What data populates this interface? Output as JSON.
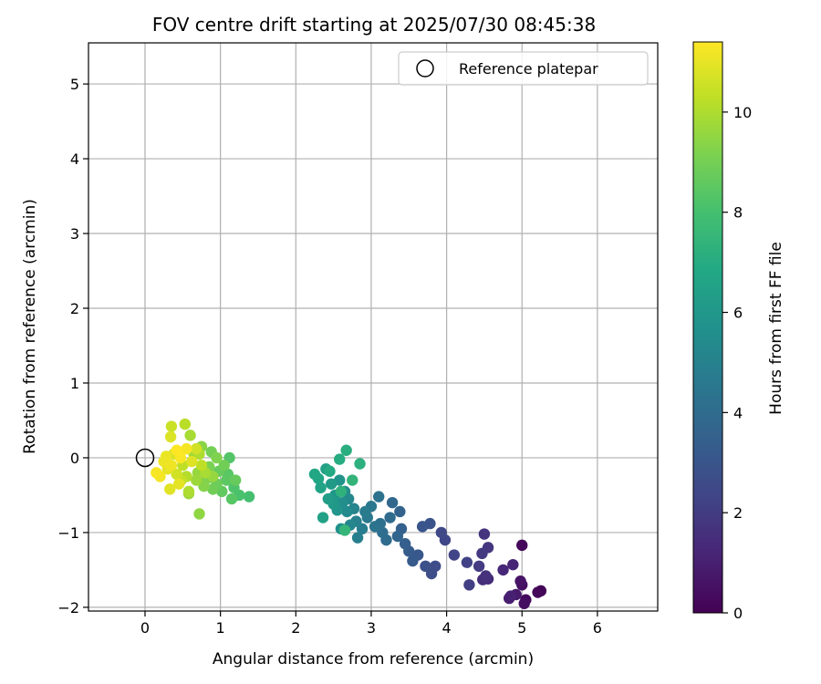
{
  "chart_data": {
    "type": "scatter",
    "title": "FOV centre drift starting at 2025/07/30 08:45:38",
    "xlabel": "Angular distance from reference (arcmin)",
    "ylabel": "Rotation from reference (arcmin)",
    "xlim": [
      -0.75,
      6.8
    ],
    "ylim": [
      -2.05,
      5.55
    ],
    "xticks": [
      0,
      1,
      2,
      3,
      4,
      5,
      6
    ],
    "yticks": [
      -2,
      -1,
      0,
      1,
      2,
      3,
      4,
      5
    ],
    "grid": true,
    "legend": {
      "location": "top-right",
      "entries": [
        "Reference platepar"
      ]
    },
    "reference_point": {
      "label": "Reference platepar",
      "x": 0,
      "y": 0,
      "marker": "open-circle"
    },
    "colorbar": {
      "label": "Hours from first FF file",
      "colormap": "viridis",
      "range": [
        0,
        11.4
      ],
      "ticks": [
        0,
        2,
        4,
        6,
        8,
        10
      ]
    },
    "series": [
      {
        "color_by": "hours",
        "points": [
          {
            "x": 5.25,
            "y": -1.78,
            "c": 0.1
          },
          {
            "x": 5.21,
            "y": -1.8,
            "c": 0.2
          },
          {
            "x": 5.05,
            "y": -1.9,
            "c": 0.3
          },
          {
            "x": 5.03,
            "y": -1.95,
            "c": 0.4
          },
          {
            "x": 5.0,
            "y": -1.7,
            "c": 0.5
          },
          {
            "x": 4.98,
            "y": -1.65,
            "c": 0.6
          },
          {
            "x": 4.92,
            "y": -1.83,
            "c": 0.8
          },
          {
            "x": 4.83,
            "y": -1.88,
            "c": 0.9
          },
          {
            "x": 4.85,
            "y": -1.85,
            "c": 1.0
          },
          {
            "x": 5.0,
            "y": -1.17,
            "c": 0.2
          },
          {
            "x": 4.88,
            "y": -1.43,
            "c": 1.2
          },
          {
            "x": 4.75,
            "y": -1.5,
            "c": 1.3
          },
          {
            "x": 4.55,
            "y": -1.62,
            "c": 1.4
          },
          {
            "x": 4.48,
            "y": -1.63,
            "c": 1.5
          },
          {
            "x": 4.52,
            "y": -1.58,
            "c": 1.6
          },
          {
            "x": 4.5,
            "y": -1.02,
            "c": 1.7
          },
          {
            "x": 4.55,
            "y": -1.2,
            "c": 1.8
          },
          {
            "x": 4.47,
            "y": -1.28,
            "c": 1.9
          },
          {
            "x": 4.43,
            "y": -1.45,
            "c": 2.0
          },
          {
            "x": 4.3,
            "y": -1.7,
            "c": 2.1
          },
          {
            "x": 4.27,
            "y": -1.4,
            "c": 2.2
          },
          {
            "x": 4.1,
            "y": -1.3,
            "c": 2.3
          },
          {
            "x": 3.98,
            "y": -1.1,
            "c": 2.4
          },
          {
            "x": 3.93,
            "y": -1.0,
            "c": 2.5
          },
          {
            "x": 3.85,
            "y": -1.45,
            "c": 2.6
          },
          {
            "x": 3.8,
            "y": -1.55,
            "c": 2.7
          },
          {
            "x": 3.72,
            "y": -1.45,
            "c": 2.8
          },
          {
            "x": 3.78,
            "y": -0.88,
            "c": 2.9
          },
          {
            "x": 3.68,
            "y": -0.92,
            "c": 3.0
          },
          {
            "x": 3.62,
            "y": -1.3,
            "c": 3.1
          },
          {
            "x": 3.55,
            "y": -1.38,
            "c": 3.2
          },
          {
            "x": 3.5,
            "y": -1.25,
            "c": 3.3
          },
          {
            "x": 3.45,
            "y": -1.15,
            "c": 3.4
          },
          {
            "x": 3.4,
            "y": -0.95,
            "c": 3.5
          },
          {
            "x": 3.38,
            "y": -0.72,
            "c": 3.6
          },
          {
            "x": 3.35,
            "y": -1.05,
            "c": 3.7
          },
          {
            "x": 3.28,
            "y": -0.6,
            "c": 3.8
          },
          {
            "x": 3.25,
            "y": -0.8,
            "c": 3.9
          },
          {
            "x": 3.2,
            "y": -1.1,
            "c": 4.0
          },
          {
            "x": 3.15,
            "y": -1.0,
            "c": 4.1
          },
          {
            "x": 3.12,
            "y": -0.88,
            "c": 4.2
          },
          {
            "x": 3.1,
            "y": -0.52,
            "c": 4.3
          },
          {
            "x": 3.05,
            "y": -0.92,
            "c": 4.4
          },
          {
            "x": 3.0,
            "y": -0.65,
            "c": 4.5
          },
          {
            "x": 2.95,
            "y": -0.8,
            "c": 4.6
          },
          {
            "x": 2.92,
            "y": -0.72,
            "c": 4.7
          },
          {
            "x": 2.88,
            "y": -0.95,
            "c": 4.8
          },
          {
            "x": 2.82,
            "y": -1.07,
            "c": 4.9
          },
          {
            "x": 2.8,
            "y": -0.85,
            "c": 5.0
          },
          {
            "x": 2.77,
            "y": -0.68,
            "c": 5.1
          },
          {
            "x": 2.72,
            "y": -0.9,
            "c": 5.2
          },
          {
            "x": 2.7,
            "y": -0.55,
            "c": 5.3
          },
          {
            "x": 2.68,
            "y": -0.72,
            "c": 5.4
          },
          {
            "x": 2.65,
            "y": -0.45,
            "c": 5.5
          },
          {
            "x": 2.62,
            "y": -0.6,
            "c": 5.6
          },
          {
            "x": 2.6,
            "y": -0.95,
            "c": 5.7
          },
          {
            "x": 2.58,
            "y": -0.3,
            "c": 5.8
          },
          {
            "x": 2.55,
            "y": -0.7,
            "c": 5.9
          },
          {
            "x": 2.52,
            "y": -0.5,
            "c": 6.0
          },
          {
            "x": 2.5,
            "y": -0.62,
            "c": 6.1
          },
          {
            "x": 2.47,
            "y": -0.35,
            "c": 6.2
          },
          {
            "x": 2.43,
            "y": -0.55,
            "c": 6.3
          },
          {
            "x": 2.4,
            "y": -0.15,
            "c": 6.4
          },
          {
            "x": 2.36,
            "y": -0.8,
            "c": 6.5
          },
          {
            "x": 2.33,
            "y": -0.4,
            "c": 6.6
          },
          {
            "x": 2.3,
            "y": -0.28,
            "c": 6.7
          },
          {
            "x": 2.25,
            "y": -0.22,
            "c": 6.8
          },
          {
            "x": 2.45,
            "y": -0.18,
            "c": 6.9
          },
          {
            "x": 2.58,
            "y": -0.02,
            "c": 7.0
          },
          {
            "x": 2.67,
            "y": 0.1,
            "c": 7.1
          },
          {
            "x": 2.85,
            "y": -0.08,
            "c": 7.2
          },
          {
            "x": 2.6,
            "y": -0.45,
            "c": 7.3
          },
          {
            "x": 2.75,
            "y": -0.3,
            "c": 7.4
          },
          {
            "x": 2.65,
            "y": -0.97,
            "c": 7.5
          },
          {
            "x": 1.38,
            "y": -0.52,
            "c": 8.0
          },
          {
            "x": 1.25,
            "y": -0.5,
            "c": 8.1
          },
          {
            "x": 1.18,
            "y": -0.4,
            "c": 8.2
          },
          {
            "x": 1.12,
            "y": 0.0,
            "c": 8.3
          },
          {
            "x": 1.15,
            "y": -0.55,
            "c": 8.4
          },
          {
            "x": 1.08,
            "y": -0.3,
            "c": 8.5
          },
          {
            "x": 1.02,
            "y": -0.45,
            "c": 8.6
          },
          {
            "x": 0.98,
            "y": -0.18,
            "c": 8.7
          },
          {
            "x": 0.95,
            "y": -0.35,
            "c": 8.8
          },
          {
            "x": 0.9,
            "y": -0.42,
            "c": 8.9
          },
          {
            "x": 0.88,
            "y": 0.08,
            "c": 9.0
          },
          {
            "x": 0.85,
            "y": -0.12,
            "c": 9.1
          },
          {
            "x": 0.82,
            "y": -0.28,
            "c": 9.2
          },
          {
            "x": 0.78,
            "y": -0.38,
            "c": 9.3
          },
          {
            "x": 0.75,
            "y": 0.15,
            "c": 9.4
          },
          {
            "x": 0.72,
            "y": -0.75,
            "c": 9.5
          },
          {
            "x": 0.7,
            "y": -0.2,
            "c": 9.6
          },
          {
            "x": 0.68,
            "y": -0.3,
            "c": 9.7
          },
          {
            "x": 0.65,
            "y": 0.05,
            "c": 9.8
          },
          {
            "x": 0.6,
            "y": 0.3,
            "c": 9.9
          },
          {
            "x": 0.58,
            "y": -0.45,
            "c": 10.0
          },
          {
            "x": 0.55,
            "y": -0.25,
            "c": 10.1
          },
          {
            "x": 0.53,
            "y": 0.45,
            "c": 10.2
          },
          {
            "x": 0.5,
            "y": -0.1,
            "c": 10.3
          },
          {
            "x": 0.48,
            "y": -0.3,
            "c": 10.4
          },
          {
            "x": 0.35,
            "y": 0.42,
            "c": 10.5
          },
          {
            "x": 0.42,
            "y": -0.22,
            "c": 10.6
          },
          {
            "x": 0.38,
            "y": 0.05,
            "c": 10.7
          },
          {
            "x": 0.34,
            "y": 0.28,
            "c": 10.8
          },
          {
            "x": 0.33,
            "y": -0.42,
            "c": 10.9
          },
          {
            "x": 0.3,
            "y": -0.15,
            "c": 11.0
          },
          {
            "x": 0.25,
            "y": -0.05,
            "c": 11.1
          },
          {
            "x": 0.2,
            "y": -0.25,
            "c": 11.2
          },
          {
            "x": 0.15,
            "y": -0.2,
            "c": 11.3
          },
          {
            "x": 0.42,
            "y": 0.1,
            "c": 11.4
          },
          {
            "x": 0.47,
            "y": 0.0,
            "c": 11.35
          },
          {
            "x": 0.55,
            "y": 0.12,
            "c": 11.25
          },
          {
            "x": 0.35,
            "y": -0.1,
            "c": 11.15
          },
          {
            "x": 0.28,
            "y": 0.02,
            "c": 11.05
          },
          {
            "x": 0.45,
            "y": -0.35,
            "c": 10.95
          },
          {
            "x": 0.62,
            "y": -0.05,
            "c": 10.85
          },
          {
            "x": 0.75,
            "y": -0.1,
            "c": 10.3
          },
          {
            "x": 0.95,
            "y": 0.0,
            "c": 9.2
          },
          {
            "x": 1.05,
            "y": -0.1,
            "c": 8.9
          },
          {
            "x": 0.9,
            "y": -0.25,
            "c": 9.6
          },
          {
            "x": 1.2,
            "y": -0.3,
            "c": 8.7
          },
          {
            "x": 0.8,
            "y": -0.2,
            "c": 9.9
          },
          {
            "x": 0.68,
            "y": 0.12,
            "c": 10.6
          },
          {
            "x": 0.58,
            "y": -0.48,
            "c": 9.7
          },
          {
            "x": 1.1,
            "y": -0.22,
            "c": 8.4
          },
          {
            "x": 0.72,
            "y": 0.05,
            "c": 10.0
          }
        ]
      }
    ]
  }
}
